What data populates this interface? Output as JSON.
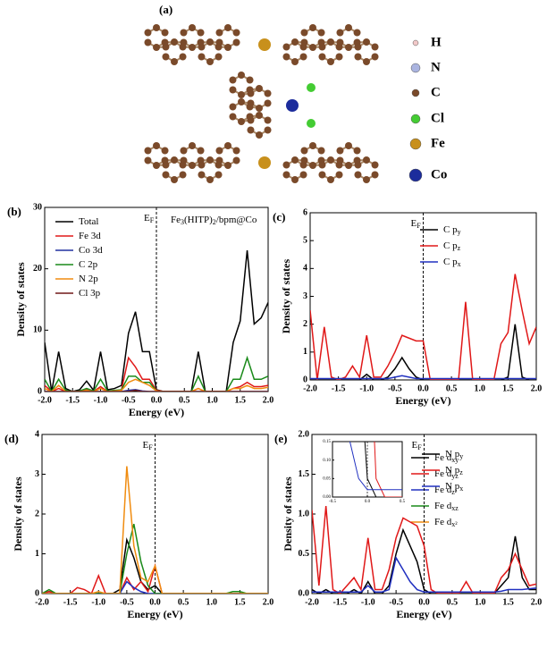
{
  "structure": {
    "label": "(a)",
    "legend": [
      "H",
      "N",
      "C",
      "Cl",
      "Fe",
      "Co"
    ],
    "colors": [
      "#f2c9c9",
      "#aab4e0",
      "#7a4a2a",
      "#44cc33",
      "#c8901c",
      "#1c2c9c"
    ]
  },
  "chart_data": [
    {
      "type": "line",
      "label": "(b)",
      "title_parts": [
        "Fe",
        "3",
        "(HITP)",
        "2",
        "/bpm@Co"
      ],
      "ylabel": "Density of states",
      "xlabel": "Energy (eV)",
      "ef": {
        "x": 0,
        "label": [
          "E",
          "F"
        ]
      },
      "x": [
        -2,
        -1.875,
        -1.75,
        -1.625,
        -1.5,
        -1.375,
        -1.25,
        -1.125,
        -1,
        -0.875,
        -0.75,
        -0.625,
        -0.5,
        -0.375,
        -0.25,
        -0.125,
        0,
        0.125,
        0.25,
        0.375,
        0.5,
        0.625,
        0.75,
        0.875,
        1,
        1.125,
        1.25,
        1.375,
        1.5,
        1.625,
        1.75,
        1.875,
        2
      ],
      "xlim": [
        -2,
        2
      ],
      "xticks": [
        {
          "value": -2,
          "label": "-2.0"
        },
        {
          "value": -1.5,
          "label": "-1.5"
        },
        {
          "value": -1,
          "label": "-1.0"
        },
        {
          "value": -0.5,
          "label": "-0.5"
        },
        {
          "value": 0,
          "label": "0.0"
        },
        {
          "value": 0.5,
          "label": "0.5"
        },
        {
          "value": 1,
          "label": "1.0"
        },
        {
          "value": 1.5,
          "label": "1.5"
        },
        {
          "value": 2,
          "label": "2.0"
        }
      ],
      "ylim": [
        0,
        30
      ],
      "yticks": [
        0,
        10,
        20,
        30
      ],
      "series": [
        {
          "name": [
            "Total",
            ""
          ],
          "color": "#000000",
          "values": [
            8,
            0,
            6.5,
            0.5,
            0,
            0.3,
            1.7,
            0.2,
            6.5,
            0.3,
            0.5,
            1,
            9.5,
            13,
            6.5,
            6.5,
            0.3,
            0,
            0,
            0,
            0,
            0,
            6.5,
            0,
            0,
            0,
            0,
            8,
            11.5,
            23,
            11,
            12,
            14.5
          ]
        },
        {
          "name": [
            "Fe 3d",
            ""
          ],
          "color": "#e01818",
          "values": [
            1,
            0,
            0.5,
            0,
            0,
            0,
            0.3,
            0,
            0.8,
            0,
            0.1,
            0.3,
            5.5,
            4,
            2,
            2,
            0.2,
            0,
            0,
            0,
            0,
            0,
            0.5,
            0,
            0,
            0,
            0,
            0.5,
            0.8,
            1.5,
            0.8,
            0.8,
            1
          ]
        },
        {
          "name": [
            "Co 3d",
            ""
          ],
          "color": "#2030a0",
          "values": [
            0,
            0,
            0,
            0,
            0,
            0,
            0,
            0,
            0,
            0,
            0,
            0,
            0.2,
            0.3,
            0.1,
            0,
            0,
            0,
            0,
            0,
            0,
            0,
            0,
            0,
            0,
            0,
            0,
            0,
            0,
            0,
            0,
            0,
            0
          ]
        },
        {
          "name": [
            "C 2p",
            ""
          ],
          "color": "#1a8a1a",
          "values": [
            2,
            0,
            2,
            0.2,
            0,
            0.1,
            0.5,
            0.1,
            2,
            0.1,
            0.2,
            0.3,
            2.5,
            2.5,
            1.5,
            1.5,
            0.1,
            0,
            0,
            0,
            0,
            0,
            2.5,
            0,
            0,
            0,
            0,
            2,
            2,
            5.5,
            2,
            2,
            2.5
          ]
        },
        {
          "name": [
            "N 2p",
            ""
          ],
          "color": "#f08c10",
          "values": [
            0.5,
            0,
            1,
            0,
            0,
            0,
            0.2,
            0,
            0.5,
            0,
            0.1,
            0.2,
            1.5,
            2,
            1.5,
            1,
            0.1,
            0,
            0,
            0,
            0,
            0,
            0.5,
            0,
            0,
            0,
            0,
            0.5,
            0.5,
            1,
            0.5,
            0.5,
            0.7
          ]
        },
        {
          "name": [
            "Cl 3p",
            ""
          ],
          "color": "#701818",
          "values": [
            0,
            0,
            0,
            0,
            0,
            0,
            0,
            0,
            0,
            0,
            0,
            0,
            0,
            0.2,
            0,
            0,
            0,
            0,
            0,
            0,
            0,
            0,
            0,
            0,
            0,
            0,
            0,
            0,
            0,
            0,
            0,
            0,
            0
          ]
        }
      ]
    },
    {
      "type": "line",
      "label": "(c)",
      "ylabel": "Density of states",
      "xlabel": "Energy (eV)",
      "ef": {
        "x": 0,
        "label": [
          "E",
          "F"
        ]
      },
      "x": [
        -2,
        -1.875,
        -1.75,
        -1.625,
        -1.5,
        -1.375,
        -1.25,
        -1.125,
        -1,
        -0.875,
        -0.75,
        -0.625,
        -0.5,
        -0.375,
        -0.25,
        -0.125,
        0,
        0.125,
        0.25,
        0.375,
        0.5,
        0.625,
        0.75,
        0.875,
        1,
        1.125,
        1.25,
        1.375,
        1.5,
        1.625,
        1.75,
        1.875,
        2
      ],
      "xlim": [
        -2,
        2
      ],
      "xticks": [
        {
          "value": -2,
          "label": "-2.0"
        },
        {
          "value": -1.5,
          "label": "-1.5"
        },
        {
          "value": -1,
          "label": "-1.0"
        },
        {
          "value": -0.5,
          "label": "-0.5"
        },
        {
          "value": 0,
          "label": "0.0"
        },
        {
          "value": 0.5,
          "label": "0.5"
        },
        {
          "value": 1,
          "label": "1.0"
        },
        {
          "value": 1.5,
          "label": "1.5"
        },
        {
          "value": 2,
          "label": "2.0"
        }
      ],
      "ylim": [
        0,
        6
      ],
      "yticks": [
        0,
        1,
        2,
        3,
        4,
        5,
        6
      ],
      "series": [
        {
          "name": [
            "C p",
            "y"
          ],
          "color": "#000000",
          "values": [
            0,
            0,
            0,
            0,
            0,
            0,
            0,
            0,
            0.2,
            0,
            0,
            0.1,
            0.4,
            0.8,
            0.4,
            0.1,
            0,
            0,
            0,
            0,
            0,
            0,
            0,
            0,
            0,
            0,
            0,
            0,
            0.1,
            2,
            0.1,
            0,
            0
          ]
        },
        {
          "name": [
            "C p",
            "z"
          ],
          "color": "#e01818",
          "values": [
            2.5,
            0,
            1.9,
            0.1,
            0,
            0.1,
            0.5,
            0.1,
            1.6,
            0.1,
            0.1,
            0.5,
            1,
            1.6,
            1.5,
            1.4,
            1.4,
            0,
            0,
            0,
            0,
            0,
            2.8,
            0,
            0,
            0,
            0,
            1.3,
            1.7,
            3.8,
            2.5,
            1.3,
            1.9
          ]
        },
        {
          "name": [
            "C p",
            "x"
          ],
          "color": "#2030c0",
          "values": [
            0.05,
            0.05,
            0.05,
            0.05,
            0.05,
            0.05,
            0.05,
            0.05,
            0.05,
            0.05,
            0.05,
            0.05,
            0.1,
            0.15,
            0.1,
            0.05,
            0.05,
            0.05,
            0.05,
            0.05,
            0.05,
            0.05,
            0.05,
            0.05,
            0.05,
            0.05,
            0.05,
            0.05,
            0.05,
            0.05,
            0.05,
            0.05,
            0.05
          ]
        }
      ]
    },
    {
      "type": "line",
      "label": "(d)",
      "ylabel": "Density of states",
      "xlabel": "Energy (eV)",
      "ef": {
        "x": 0,
        "label": [
          "E",
          "F"
        ]
      },
      "x": [
        -2,
        -1.875,
        -1.75,
        -1.625,
        -1.5,
        -1.375,
        -1.25,
        -1.125,
        -1,
        -0.875,
        -0.75,
        -0.625,
        -0.5,
        -0.375,
        -0.25,
        -0.125,
        0,
        0.125,
        0.25,
        0.375,
        0.5,
        0.625,
        0.75,
        0.875,
        1,
        1.125,
        1.25,
        1.375,
        1.5,
        1.625,
        1.75,
        1.875,
        2
      ],
      "xlim": [
        -2,
        2
      ],
      "xticks": [
        {
          "value": -2,
          "label": "-2.0"
        },
        {
          "value": -1.5,
          "label": "-1.5"
        },
        {
          "value": -1,
          "label": "-1.0"
        },
        {
          "value": -0.5,
          "label": "-0.5"
        },
        {
          "value": 0,
          "label": "0.0"
        },
        {
          "value": 0.5,
          "label": "0.5"
        },
        {
          "value": 1,
          "label": "1.0"
        },
        {
          "value": 1.5,
          "label": "1.5"
        },
        {
          "value": 2,
          "label": "2.0"
        }
      ],
      "ylim": [
        0,
        4
      ],
      "yticks": [
        0,
        1,
        2,
        3,
        4
      ],
      "series": [
        {
          "name": [
            "Fe d",
            "xy"
          ],
          "color": "#000000",
          "values": [
            0,
            0.05,
            0,
            0,
            0,
            0,
            0,
            0,
            0,
            0,
            0,
            0.1,
            1.35,
            0.9,
            0.3,
            0.1,
            0.2,
            0,
            0,
            0,
            0,
            0,
            0,
            0,
            0,
            0,
            0,
            0,
            0,
            0,
            0,
            0,
            0
          ]
        },
        {
          "name": [
            "Fe d",
            "yz"
          ],
          "color": "#e01818",
          "values": [
            0,
            0.05,
            0,
            0,
            0,
            0.15,
            0.1,
            0,
            0.45,
            0,
            0,
            0,
            0.4,
            0.1,
            0.3,
            0.05,
            0.7,
            0,
            0,
            0,
            0,
            0,
            0,
            0,
            0,
            0,
            0,
            0,
            0,
            0,
            0,
            0,
            0
          ]
        },
        {
          "name": [
            "Fe d",
            "z²"
          ],
          "color": "#2030c0",
          "values": [
            0,
            0,
            0,
            0,
            0,
            0,
            0,
            0,
            0,
            0,
            0,
            0,
            0.3,
            0.15,
            0.05,
            0,
            0,
            0,
            0,
            0,
            0,
            0,
            0,
            0,
            0,
            0,
            0,
            0,
            0,
            0,
            0,
            0,
            0
          ]
        },
        {
          "name": [
            "Fe d",
            "xz"
          ],
          "color": "#1a8a1a",
          "values": [
            0,
            0.1,
            0,
            0,
            0,
            0,
            0,
            0,
            0,
            0,
            0,
            0,
            1,
            1.75,
            0.8,
            0.2,
            0,
            0,
            0,
            0,
            0,
            0,
            0,
            0,
            0,
            0,
            0,
            0.05,
            0.05,
            0,
            0,
            0,
            0
          ]
        },
        {
          "name": [
            "Fe d",
            "x²"
          ],
          "color": "#f08c10",
          "values": [
            0,
            0,
            0,
            0,
            0,
            0,
            0,
            0,
            0.05,
            0,
            0,
            0,
            3.2,
            1.2,
            0.4,
            0.3,
            0.7,
            0,
            0,
            0,
            0,
            0,
            0,
            0,
            0,
            0,
            0,
            0,
            0,
            0,
            0,
            0,
            0
          ]
        }
      ]
    },
    {
      "type": "line",
      "label": "(e)",
      "ylabel": "Density of states",
      "xlabel": "Energy (eV)",
      "ef": {
        "x": 0,
        "label": [
          "E",
          "F"
        ]
      },
      "x": [
        -2,
        -1.875,
        -1.75,
        -1.625,
        -1.5,
        -1.375,
        -1.25,
        -1.125,
        -1,
        -0.875,
        -0.75,
        -0.625,
        -0.5,
        -0.375,
        -0.25,
        -0.125,
        0,
        0.125,
        0.25,
        0.375,
        0.5,
        0.625,
        0.75,
        0.875,
        1,
        1.125,
        1.25,
        1.375,
        1.5,
        1.625,
        1.75,
        1.875,
        2
      ],
      "xlim": [
        -2,
        2
      ],
      "xticks": [
        {
          "value": -2,
          "label": "-2.0"
        },
        {
          "value": -1.5,
          "label": "-1.5"
        },
        {
          "value": -1,
          "label": "-1.0"
        },
        {
          "value": -0.5,
          "label": "-0.5"
        },
        {
          "value": 0,
          "label": "0.0"
        },
        {
          "value": 0.5,
          "label": "0.5"
        },
        {
          "value": 1,
          "label": "1.0"
        },
        {
          "value": 1.5,
          "label": "1.5"
        },
        {
          "value": 2,
          "label": "2.0"
        }
      ],
      "ylim": [
        0,
        2
      ],
      "yticks": [
        {
          "value": 0,
          "label": "0.0"
        },
        {
          "value": 0.5,
          "label": "0.5"
        },
        {
          "value": 1,
          "label": "1.0"
        },
        {
          "value": 1.5,
          "label": "1.5"
        },
        {
          "value": 2,
          "label": "2.0"
        }
      ],
      "series": [
        {
          "name": [
            "N p",
            "y"
          ],
          "color": "#000000",
          "values": [
            0.05,
            0,
            0.05,
            0,
            0,
            0,
            0.05,
            0,
            0.15,
            0,
            0,
            0.1,
            0.5,
            0.8,
            0.6,
            0.4,
            0.05,
            0,
            0,
            0,
            0,
            0,
            0,
            0,
            0,
            0,
            0,
            0.1,
            0.2,
            0.72,
            0.2,
            0.05,
            0.05
          ]
        },
        {
          "name": [
            "N p",
            "z"
          ],
          "color": "#e01818",
          "values": [
            1.05,
            0.1,
            1.1,
            0.05,
            0,
            0.1,
            0.2,
            0.05,
            0.7,
            0.05,
            0.05,
            0.3,
            0.7,
            0.95,
            0.9,
            0.85,
            0.6,
            0.05,
            0,
            0,
            0,
            0,
            0.15,
            0,
            0,
            0,
            0,
            0.2,
            0.3,
            0.5,
            0.3,
            0.1,
            0.12
          ]
        },
        {
          "name": [
            "N p",
            "x"
          ],
          "color": "#2030c0",
          "values": [
            0.02,
            0.02,
            0.02,
            0.02,
            0.02,
            0.02,
            0.02,
            0.02,
            0.1,
            0.02,
            0.02,
            0.05,
            0.45,
            0.3,
            0.15,
            0.05,
            0.02,
            0.02,
            0.02,
            0.02,
            0.02,
            0.02,
            0.02,
            0.02,
            0.02,
            0.02,
            0.02,
            0.03,
            0.05,
            0.05,
            0.05,
            0.06,
            0.07
          ]
        }
      ],
      "inset": {
        "xlim": [
          -0.5,
          0.5
        ],
        "xticks": [
          {
            "value": -0.5,
            "label": "-0.5"
          },
          {
            "value": 0,
            "label": "0.0"
          },
          {
            "value": 0.5,
            "label": "0.5"
          }
        ],
        "ylim": [
          0,
          0.15
        ],
        "yticks": [
          {
            "value": 0,
            "label": "0.00"
          },
          {
            "value": 0.05,
            "label": "0.05"
          },
          {
            "value": 0.1,
            "label": "0.10"
          },
          {
            "value": 0.15,
            "label": "0.15"
          }
        ]
      }
    }
  ]
}
